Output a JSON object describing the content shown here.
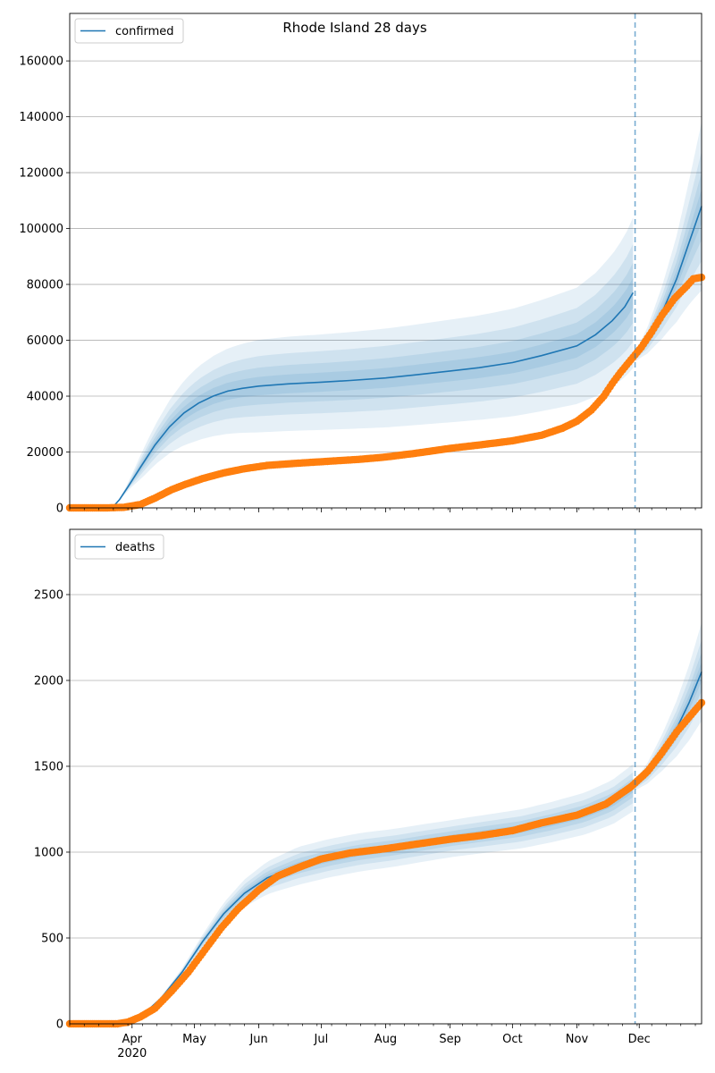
{
  "figure_title": "Rhode Island 28 days",
  "colors": {
    "model": "#1f77b4",
    "observed": "#ff7f0e",
    "grid": "#b0b0b0",
    "vline": "#1f77b4"
  },
  "x_axis": {
    "month_labels": [
      "Apr",
      "May",
      "Jun",
      "Jul",
      "Aug",
      "Sep",
      "Oct",
      "Nov",
      "Dec"
    ],
    "year_label": "2020"
  },
  "chart_data": [
    {
      "type": "line",
      "title": "Rhode Island 28 days",
      "legend": "top-left",
      "grid": "y",
      "series_name": "confirmed",
      "xlim": [
        "2020-03-02",
        "2020-12-31"
      ],
      "ylim": [
        0,
        177000
      ],
      "yticks": [
        "0",
        "20000",
        "40000",
        "60000",
        "80000",
        "100000",
        "120000",
        "140000",
        "160000"
      ],
      "forecast_start": "2020-11-29",
      "model": [
        [
          "2020-03-02",
          0
        ],
        [
          "2020-03-20",
          0
        ],
        [
          "2020-03-23",
          500
        ],
        [
          "2020-03-26",
          3000
        ],
        [
          "2020-03-30",
          7500
        ],
        [
          "2020-04-05",
          14500
        ],
        [
          "2020-04-12",
          22500
        ],
        [
          "2020-04-19",
          29000
        ],
        [
          "2020-04-26",
          34000
        ],
        [
          "2020-05-03",
          37500
        ],
        [
          "2020-05-10",
          40000
        ],
        [
          "2020-05-17",
          41800
        ],
        [
          "2020-05-24",
          42800
        ],
        [
          "2020-06-01",
          43600
        ],
        [
          "2020-06-15",
          44400
        ],
        [
          "2020-07-01",
          45000
        ],
        [
          "2020-07-15",
          45600
        ],
        [
          "2020-08-01",
          46500
        ],
        [
          "2020-08-15",
          47600
        ],
        [
          "2020-09-01",
          49000
        ],
        [
          "2020-09-15",
          50200
        ],
        [
          "2020-10-01",
          52000
        ],
        [
          "2020-10-15",
          54500
        ],
        [
          "2020-11-01",
          58000
        ],
        [
          "2020-11-10",
          62000
        ],
        [
          "2020-11-18",
          67000
        ],
        [
          "2020-11-24",
          72000
        ],
        [
          "2020-11-28",
          77000
        ],
        [
          "2020-11-29",
          54000
        ],
        [
          "2020-12-05",
          60000
        ],
        [
          "2020-12-12",
          70000
        ],
        [
          "2020-12-19",
          82000
        ],
        [
          "2020-12-25",
          95000
        ],
        [
          "2020-12-31",
          108000
        ]
      ],
      "bands_width": [
        [
          "2020-03-02",
          0
        ],
        [
          "2020-03-20",
          0
        ],
        [
          "2020-04-05",
          0.3
        ],
        [
          "2020-05-01",
          0.35
        ],
        [
          "2020-06-01",
          0.38
        ],
        [
          "2020-08-01",
          0.38
        ],
        [
          "2020-10-01",
          0.37
        ],
        [
          "2020-11-28",
          0.35
        ],
        [
          "2020-11-29",
          0.03
        ],
        [
          "2020-12-10",
          0.12
        ],
        [
          "2020-12-31",
          0.28
        ]
      ],
      "band_scales": [
        1.0,
        0.65,
        0.4,
        0.2
      ],
      "observed_points": [
        [
          "2020-03-02",
          0
        ],
        [
          "2020-03-20",
          0
        ],
        [
          "2020-03-28",
          200
        ],
        [
          "2020-04-05",
          1200
        ],
        [
          "2020-04-12",
          3500
        ],
        [
          "2020-04-20",
          6500
        ],
        [
          "2020-04-27",
          8500
        ],
        [
          "2020-05-05",
          10500
        ],
        [
          "2020-05-15",
          12500
        ],
        [
          "2020-05-25",
          14000
        ],
        [
          "2020-06-05",
          15200
        ],
        [
          "2020-06-20",
          16000
        ],
        [
          "2020-07-05",
          16700
        ],
        [
          "2020-07-20",
          17400
        ],
        [
          "2020-08-01",
          18200
        ],
        [
          "2020-08-15",
          19500
        ],
        [
          "2020-09-01",
          21300
        ],
        [
          "2020-09-15",
          22500
        ],
        [
          "2020-10-01",
          24000
        ],
        [
          "2020-10-15",
          26000
        ],
        [
          "2020-10-25",
          28500
        ],
        [
          "2020-11-01",
          31000
        ],
        [
          "2020-11-08",
          35000
        ],
        [
          "2020-11-14",
          40000
        ],
        [
          "2020-11-18",
          44500
        ],
        [
          "2020-11-22",
          48500
        ],
        [
          "2020-11-27",
          53000
        ],
        [
          "2020-12-02",
          57500
        ],
        [
          "2020-12-07",
          63000
        ],
        [
          "2020-12-12",
          69000
        ],
        [
          "2020-12-18",
          75000
        ],
        [
          "2020-12-24",
          79500
        ],
        [
          "2020-12-27",
          82000
        ],
        [
          "2020-12-31",
          82500
        ]
      ]
    },
    {
      "type": "line",
      "legend": "top-left",
      "grid": "y",
      "series_name": "deaths",
      "xlim": [
        "2020-03-02",
        "2020-12-31"
      ],
      "ylim": [
        0,
        2880
      ],
      "yticks": [
        "0",
        "500",
        "1000",
        "1500",
        "2000",
        "2500"
      ],
      "forecast_start": "2020-11-29",
      "model": [
        [
          "2020-03-02",
          0
        ],
        [
          "2020-03-25",
          0
        ],
        [
          "2020-04-05",
          40
        ],
        [
          "2020-04-15",
          150
        ],
        [
          "2020-04-25",
          300
        ],
        [
          "2020-05-05",
          480
        ],
        [
          "2020-05-15",
          640
        ],
        [
          "2020-05-25",
          760
        ],
        [
          "2020-06-05",
          850
        ],
        [
          "2020-06-20",
          920
        ],
        [
          "2020-07-05",
          965
        ],
        [
          "2020-07-20",
          1000
        ],
        [
          "2020-08-05",
          1025
        ],
        [
          "2020-08-20",
          1055
        ],
        [
          "2020-09-05",
          1085
        ],
        [
          "2020-09-20",
          1110
        ],
        [
          "2020-10-05",
          1135
        ],
        [
          "2020-10-20",
          1175
        ],
        [
          "2020-11-05",
          1225
        ],
        [
          "2020-11-18",
          1290
        ],
        [
          "2020-11-28",
          1375
        ],
        [
          "2020-12-05",
          1460
        ],
        [
          "2020-12-12",
          1580
        ],
        [
          "2020-12-19",
          1720
        ],
        [
          "2020-12-25",
          1870
        ],
        [
          "2020-12-31",
          2050
        ]
      ],
      "bands_width": [
        [
          "2020-03-02",
          0
        ],
        [
          "2020-04-05",
          0.05
        ],
        [
          "2020-05-15",
          0.1
        ],
        [
          "2020-06-20",
          0.12
        ],
        [
          "2020-09-01",
          0.1
        ],
        [
          "2020-11-28",
          0.1
        ],
        [
          "2020-11-29",
          0.02
        ],
        [
          "2020-12-10",
          0.06
        ],
        [
          "2020-12-31",
          0.14
        ]
      ],
      "band_scales": [
        1.0,
        0.65,
        0.4,
        0.2
      ],
      "observed_points": [
        [
          "2020-03-02",
          0
        ],
        [
          "2020-03-25",
          0
        ],
        [
          "2020-03-30",
          10
        ],
        [
          "2020-04-05",
          40
        ],
        [
          "2020-04-12",
          90
        ],
        [
          "2020-04-20",
          190
        ],
        [
          "2020-04-28",
          300
        ],
        [
          "2020-05-06",
          430
        ],
        [
          "2020-05-14",
          560
        ],
        [
          "2020-05-22",
          670
        ],
        [
          "2020-06-01",
          780
        ],
        [
          "2020-06-10",
          860
        ],
        [
          "2020-06-20",
          910
        ],
        [
          "2020-07-01",
          960
        ],
        [
          "2020-07-15",
          995
        ],
        [
          "2020-08-01",
          1020
        ],
        [
          "2020-08-15",
          1045
        ],
        [
          "2020-09-01",
          1075
        ],
        [
          "2020-09-15",
          1095
        ],
        [
          "2020-10-01",
          1125
        ],
        [
          "2020-10-15",
          1170
        ],
        [
          "2020-11-01",
          1215
        ],
        [
          "2020-11-15",
          1280
        ],
        [
          "2020-11-27",
          1380
        ],
        [
          "2020-12-05",
          1470
        ],
        [
          "2020-12-12",
          1580
        ],
        [
          "2020-12-19",
          1700
        ],
        [
          "2020-12-26",
          1800
        ],
        [
          "2020-12-31",
          1870
        ]
      ]
    }
  ]
}
